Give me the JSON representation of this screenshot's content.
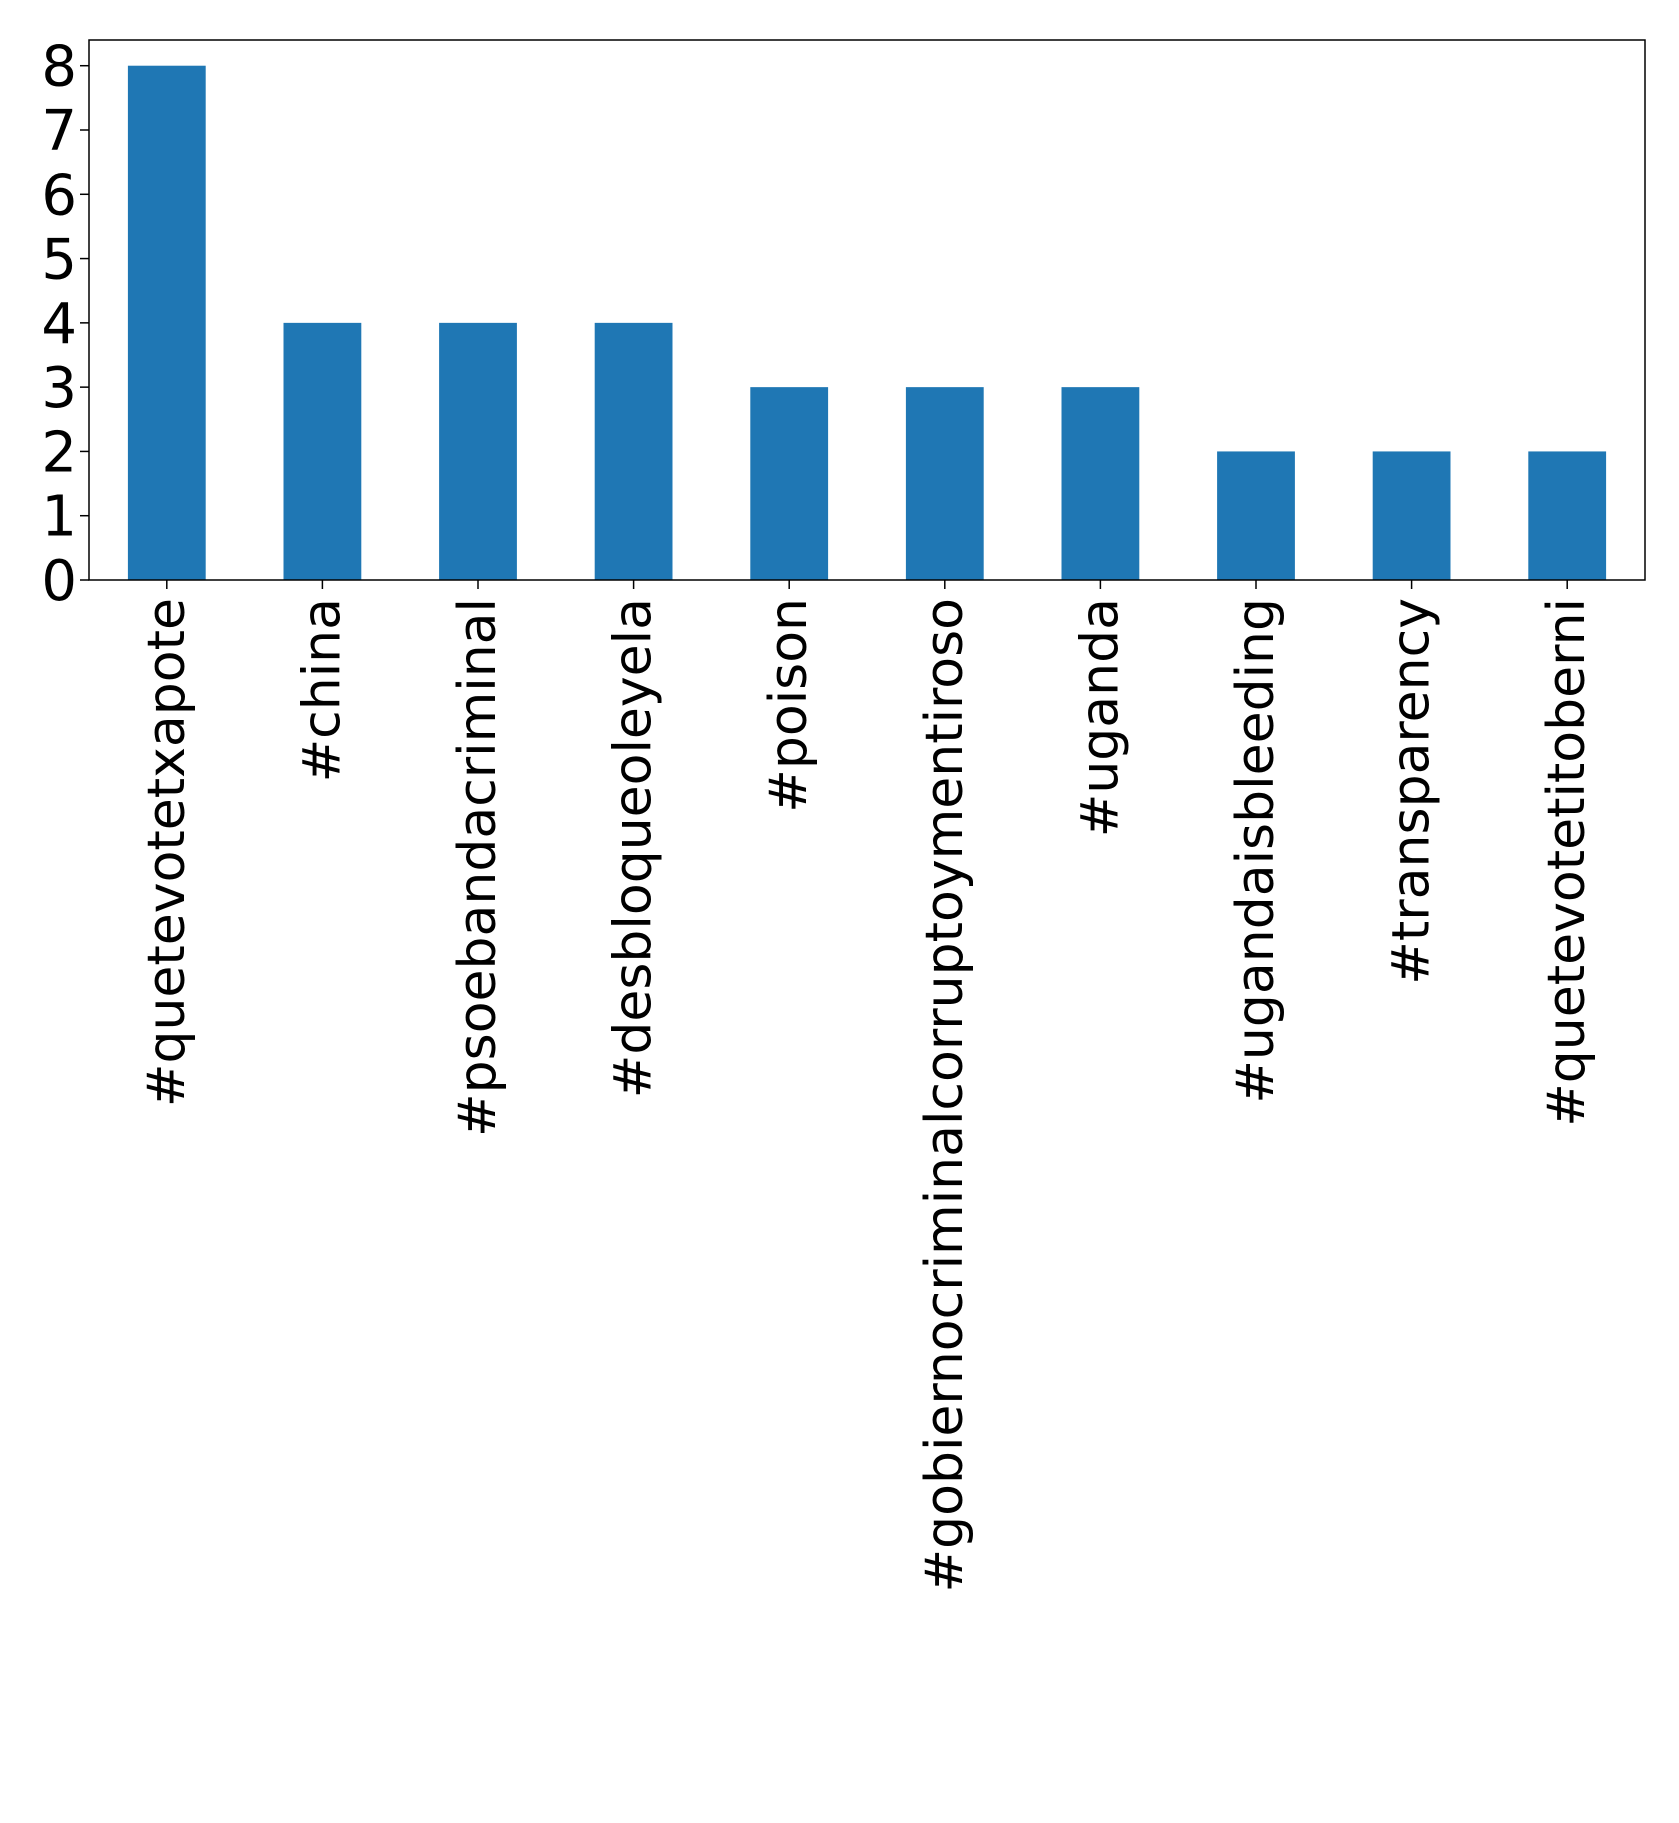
{
  "chart_data": {
    "type": "bar",
    "categories": [
      "#quetevotetxapote",
      "#china",
      "#psoebandacriminal",
      "#desbloqueoleyela",
      "#poison",
      "#gobiernocriminalcorruptoymentiroso",
      "#uganda",
      "#ugandaisbleeding",
      "#transparency",
      "#quetevotetitoberni"
    ],
    "values": [
      8,
      4,
      4,
      4,
      3,
      3,
      3,
      2,
      2,
      2
    ],
    "yticks": [
      0,
      1,
      2,
      3,
      4,
      5,
      6,
      7,
      8
    ],
    "ylim": [
      0,
      8.4
    ],
    "bar_color": "#1f77b4",
    "grid": false,
    "legend": "none"
  }
}
